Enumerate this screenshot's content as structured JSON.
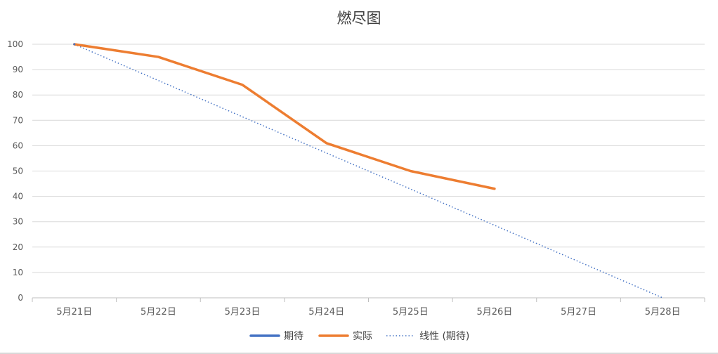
{
  "chart_data": {
    "type": "line",
    "title": "燃尽图",
    "categories": [
      "5月21日",
      "5月22日",
      "5月23日",
      "5月24日",
      "5月25日",
      "5月26日",
      "5月27日",
      "5月28日"
    ],
    "y_ticks": [
      "0",
      "10",
      "20",
      "30",
      "40",
      "50",
      "60",
      "70",
      "80",
      "90",
      "100"
    ],
    "ylim": [
      0,
      100
    ],
    "grid": true,
    "legend_position": "bottom",
    "series": [
      {
        "name": "期待",
        "color": "#4472C4",
        "style": "solid",
        "values": [
          100,
          null,
          null,
          null,
          null,
          null,
          null,
          null
        ]
      },
      {
        "name": "实际",
        "color": "#ED7D31",
        "style": "solid",
        "values": [
          100,
          95,
          84,
          61,
          50,
          43,
          null,
          null
        ]
      },
      {
        "name": "线性 (期待)",
        "color": "#4472C4",
        "style": "dotted",
        "values": [
          100,
          85.7,
          71.4,
          57.1,
          42.9,
          28.6,
          14.3,
          0
        ]
      }
    ]
  }
}
